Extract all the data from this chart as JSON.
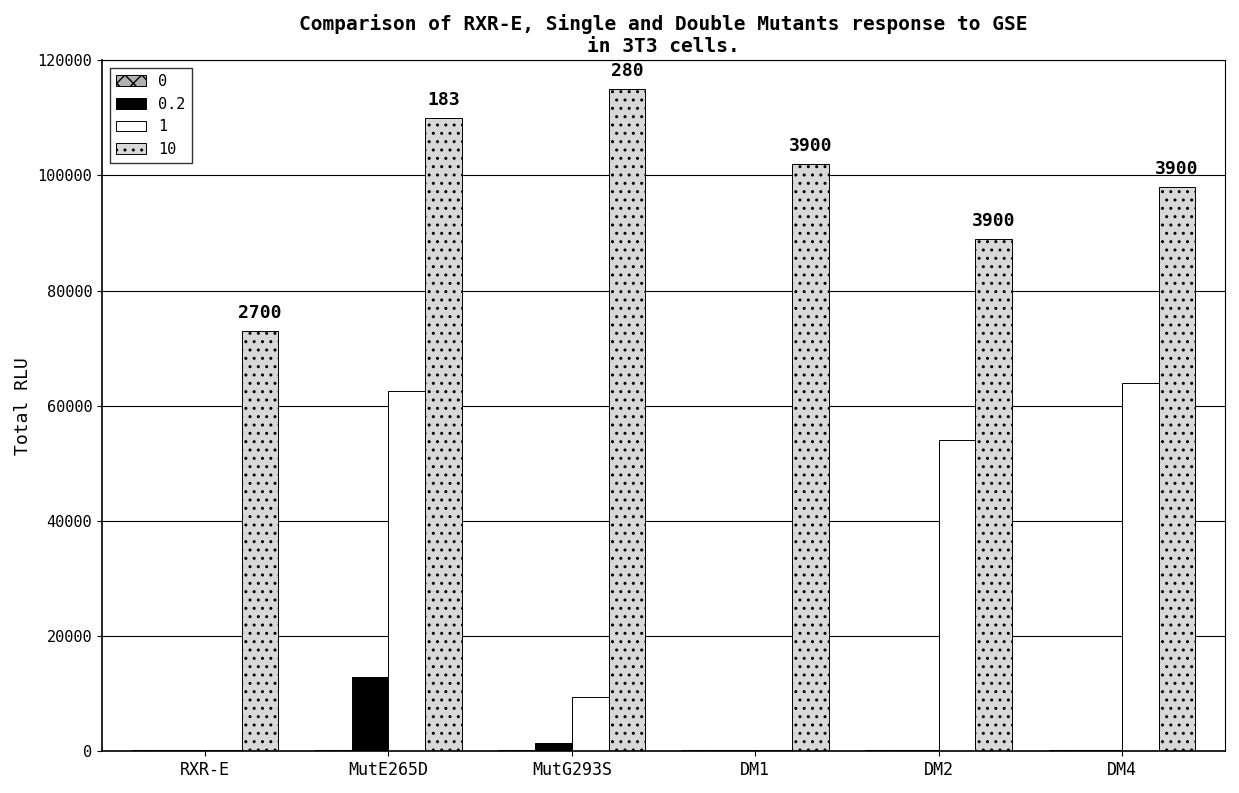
{
  "title": "Comparison of RXR-E, Single and Double Mutants response to GSE\nin 3T3 cells.",
  "ylabel": "Total RLU",
  "categories": [
    "RXR-E",
    "MutE265D",
    "MutG293S",
    "DM1",
    "DM2",
    "DM4"
  ],
  "legend_labels": [
    "0",
    "0.2",
    "1",
    "10"
  ],
  "bar_data": {
    "0": [
      200,
      200,
      200,
      200,
      200,
      200
    ],
    "0.2": [
      200,
      13000,
      1500,
      200,
      200,
      200
    ],
    "1": [
      200,
      62500,
      9500,
      200,
      54000,
      64000
    ],
    "10": [
      73000,
      110000,
      115000,
      102000,
      89000,
      98000
    ]
  },
  "annotations": {
    "RXR-E": {
      "label": "2700",
      "series": "10",
      "y": 73000
    },
    "MutE265D": {
      "label": "183",
      "series": "10",
      "y": 110000
    },
    "MutG293S": {
      "label": "280",
      "series": "10",
      "y": 115000
    },
    "DM1": {
      "label": "3900",
      "series": "10",
      "y": 102000
    },
    "DM2": {
      "label": "3900",
      "series": "10",
      "y": 89000
    },
    "DM4": {
      "label": "3900",
      "series": "10",
      "y": 98000
    }
  },
  "ylim": [
    0,
    120000
  ],
  "yticks": [
    0,
    20000,
    40000,
    60000,
    80000,
    100000,
    120000
  ],
  "bar_width": 0.32,
  "background_color": "#ffffff",
  "title_fontsize": 14,
  "axis_fontsize": 13,
  "tick_fontsize": 11,
  "annotation_fontsize": 13
}
